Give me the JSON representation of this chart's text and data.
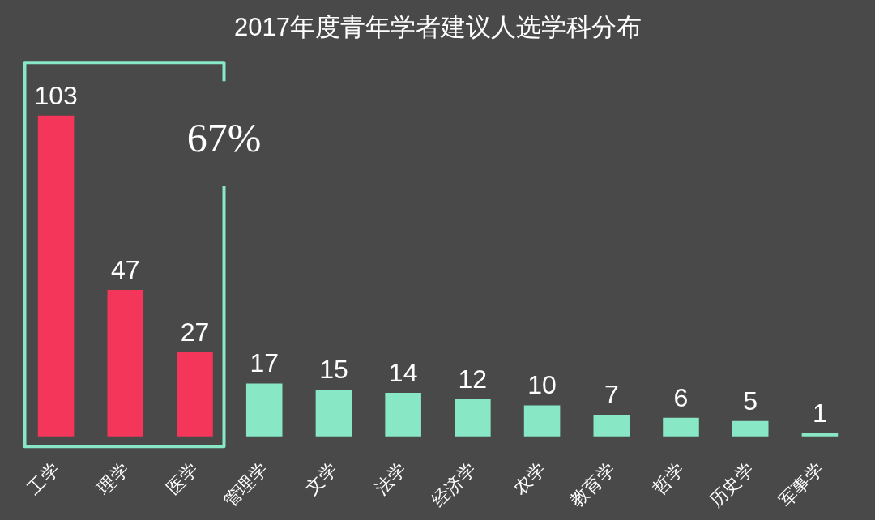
{
  "chart_data": {
    "type": "bar",
    "title": "2017年度青年学者建议人选学科分布",
    "categories": [
      "工学",
      "理学",
      "医学",
      "管理学",
      "文学",
      "法学",
      "经济学",
      "农学",
      "教育学",
      "哲学",
      "历史学",
      "军事学"
    ],
    "values": [
      103,
      47,
      27,
      17,
      15,
      14,
      12,
      10,
      7,
      6,
      5,
      1
    ],
    "colors": [
      "#f4365a",
      "#f4365a",
      "#f4365a",
      "#88e8c5",
      "#88e8c5",
      "#88e8c5",
      "#88e8c5",
      "#88e8c5",
      "#88e8c5",
      "#88e8c5",
      "#88e8c5",
      "#88e8c5"
    ],
    "data_labels": true,
    "annotations": [
      "67%"
    ]
  }
}
